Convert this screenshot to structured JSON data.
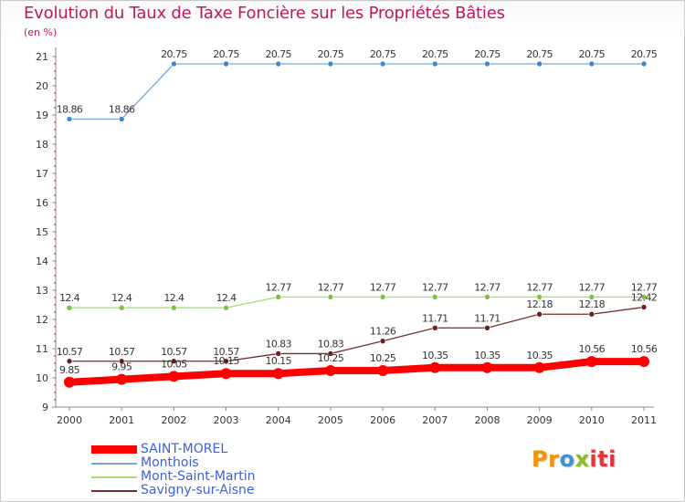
{
  "title": "Evolution du Taux de Taxe Foncière sur les Propriétés Bâties",
  "subtitle": "(en %)",
  "logo": {
    "text": "Proxiti",
    "colors": [
      "#f29400",
      "#3b93d4",
      "#8cbf26",
      "#e4343a"
    ]
  },
  "chart_data": {
    "type": "line",
    "title": "Evolution du Taux de Taxe Foncière sur les Propriétés Bâties",
    "ylabel": "(en %)",
    "xlabel": "",
    "categories": [
      "2000",
      "2001",
      "2002",
      "2003",
      "2004",
      "2005",
      "2006",
      "2007",
      "2008",
      "2009",
      "2010",
      "2011"
    ],
    "ylim": [
      9,
      21
    ],
    "yticks": [
      9,
      10,
      11,
      12,
      13,
      14,
      15,
      16,
      17,
      18,
      19,
      20,
      21
    ],
    "legend_position": "bottom-left",
    "series": [
      {
        "name": "SAINT-MOREL",
        "color": "#ff0000",
        "marker": "#ff0000",
        "values": [
          9.85,
          9.95,
          10.05,
          10.15,
          10.15,
          10.25,
          10.25,
          10.35,
          10.35,
          10.35,
          10.56,
          10.56
        ],
        "labels": [
          "9.85",
          "9.95",
          "10.05",
          "10.15",
          "10.15",
          "10.25",
          "10.25",
          "10.35",
          "10.35",
          "10.35",
          "10.56",
          "10.56"
        ]
      },
      {
        "name": "Monthois",
        "color": "#7aa6d6",
        "marker": "#3f88c5",
        "values": [
          18.86,
          18.86,
          20.75,
          20.75,
          20.75,
          20.75,
          20.75,
          20.75,
          20.75,
          20.75,
          20.75,
          20.75
        ],
        "labels": [
          "18.86",
          "18.86",
          "20.75",
          "20.75",
          "20.75",
          "20.75",
          "20.75",
          "20.75",
          "20.75",
          "20.75",
          "20.75",
          "20.75"
        ]
      },
      {
        "name": "Mont-Saint-Martin",
        "color": "#a6dd70",
        "marker": "#7bc23f",
        "values": [
          12.4,
          12.4,
          12.4,
          12.4,
          12.77,
          12.77,
          12.77,
          12.77,
          12.77,
          12.77,
          12.77,
          12.77
        ],
        "labels": [
          "12.4",
          "12.4",
          "12.4",
          "12.4",
          "12.77",
          "12.77",
          "12.77",
          "12.77",
          "12.77",
          "12.77",
          "12.77",
          "12.77"
        ]
      },
      {
        "name": "Savigny-sur-Aisne",
        "color": "#7a2c2c",
        "marker": "#6b1f1f",
        "values": [
          10.57,
          10.57,
          10.57,
          10.57,
          10.83,
          10.83,
          11.26,
          11.71,
          11.71,
          12.18,
          12.18,
          12.42
        ],
        "labels": [
          "10.57",
          "10.57",
          "10.57",
          "10.57",
          "10.83",
          "10.83",
          "11.26",
          "11.71",
          "11.71",
          "12.18",
          "12.18",
          "12.42"
        ]
      }
    ]
  }
}
